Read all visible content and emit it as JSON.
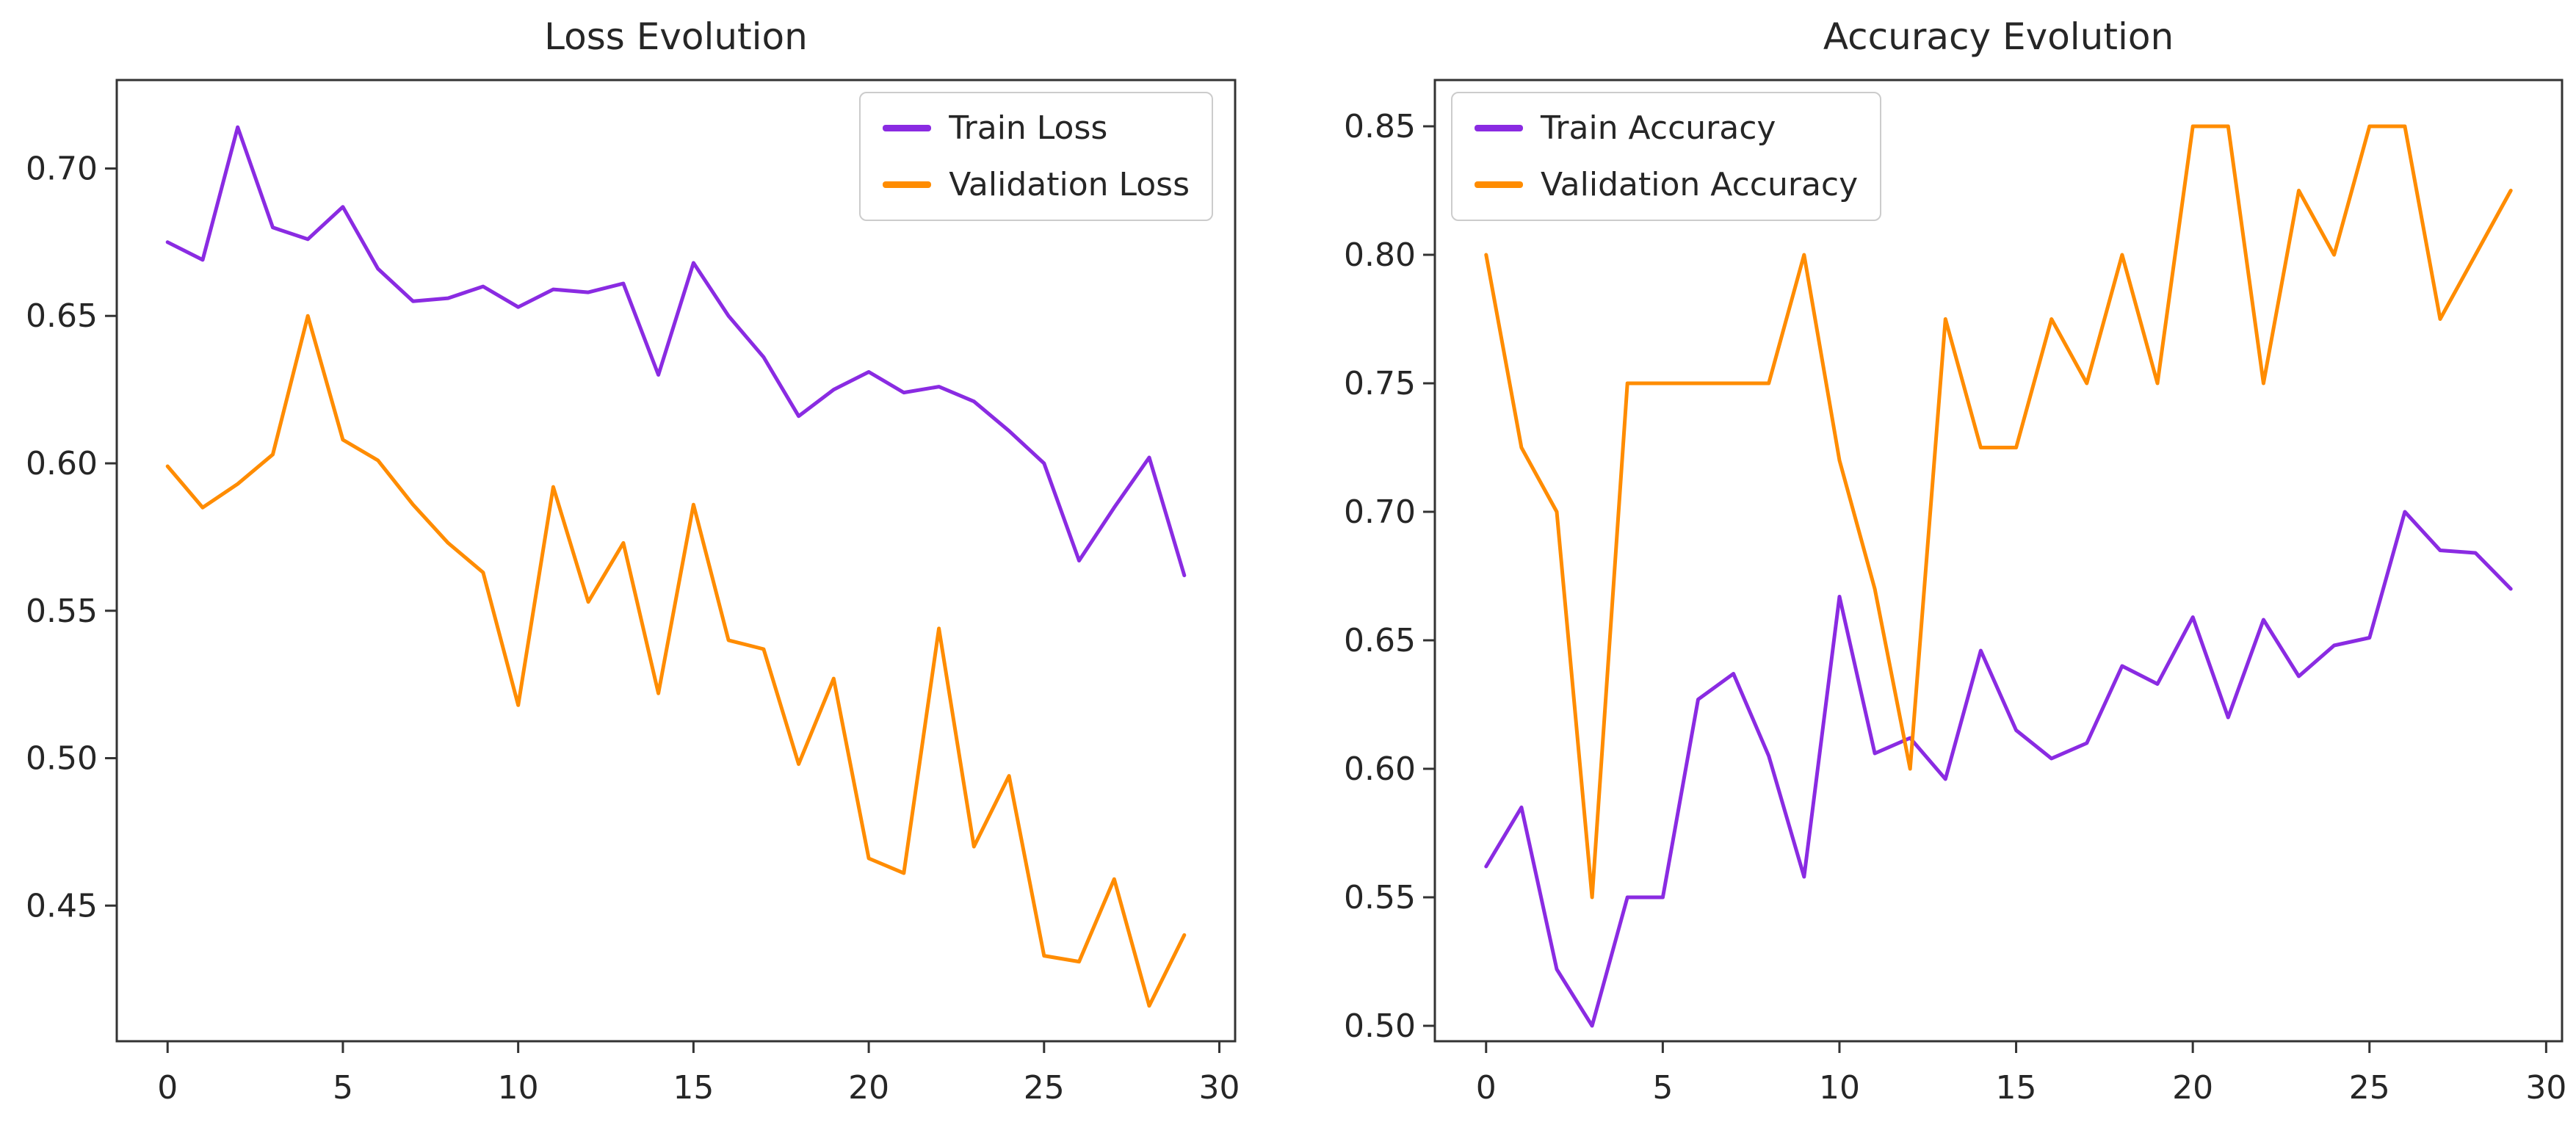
{
  "figure": {
    "background_color": "#ffffff",
    "axis_color": "#333333",
    "text_color": "#262626",
    "train_color": "#8A2BE2",
    "validation_color": "#FF8C00"
  },
  "chart_data": [
    {
      "type": "line",
      "title": "Loss Evolution",
      "xlabel": "",
      "ylabel": "",
      "x": [
        0,
        1,
        2,
        3,
        4,
        5,
        6,
        7,
        8,
        9,
        10,
        11,
        12,
        13,
        14,
        15,
        16,
        17,
        18,
        19,
        20,
        21,
        22,
        23,
        24,
        25,
        26,
        27,
        28,
        29
      ],
      "series": [
        {
          "name": "Train Loss",
          "color": "#8A2BE2",
          "values": [
            0.675,
            0.669,
            0.714,
            0.68,
            0.676,
            0.687,
            0.666,
            0.655,
            0.656,
            0.66,
            0.653,
            0.659,
            0.658,
            0.661,
            0.63,
            0.668,
            0.65,
            0.636,
            0.616,
            0.625,
            0.631,
            0.624,
            0.626,
            0.621,
            0.611,
            0.6,
            0.567,
            0.585,
            0.602,
            0.562
          ]
        },
        {
          "name": "Validation Loss",
          "color": "#FF8C00",
          "values": [
            0.599,
            0.585,
            0.593,
            0.603,
            0.65,
            0.608,
            0.601,
            0.586,
            0.573,
            0.563,
            0.518,
            0.592,
            0.553,
            0.573,
            0.522,
            0.586,
            0.54,
            0.537,
            0.498,
            0.527,
            0.466,
            0.461,
            0.544,
            0.47,
            0.494,
            0.433,
            0.431,
            0.459,
            0.416,
            0.44
          ]
        }
      ],
      "xlim": [
        -1.45,
        30.45
      ],
      "ylim": [
        0.404,
        0.73
      ],
      "xticks": [
        0,
        5,
        10,
        15,
        20,
        25,
        30
      ],
      "yticks": [
        0.45,
        0.5,
        0.55,
        0.6,
        0.65,
        0.7
      ],
      "legend_position": "upper right",
      "grid": false
    },
    {
      "type": "line",
      "title": "Accuracy Evolution",
      "xlabel": "",
      "ylabel": "",
      "x": [
        0,
        1,
        2,
        3,
        4,
        5,
        6,
        7,
        8,
        9,
        10,
        11,
        12,
        13,
        14,
        15,
        16,
        17,
        18,
        19,
        20,
        21,
        22,
        23,
        24,
        25,
        26,
        27,
        28,
        29
      ],
      "series": [
        {
          "name": "Train Accuracy",
          "color": "#8A2BE2",
          "values": [
            0.562,
            0.585,
            0.522,
            0.5,
            0.55,
            0.55,
            0.627,
            0.637,
            0.605,
            0.558,
            0.667,
            0.606,
            0.612,
            0.596,
            0.646,
            0.615,
            0.604,
            0.61,
            0.64,
            0.633,
            0.659,
            0.62,
            0.658,
            0.636,
            0.648,
            0.651,
            0.7,
            0.685,
            0.684,
            0.67
          ]
        },
        {
          "name": "Validation Accuracy",
          "color": "#FF8C00",
          "values": [
            0.8,
            0.725,
            0.7,
            0.55,
            0.75,
            0.75,
            0.75,
            0.75,
            0.75,
            0.8,
            0.72,
            0.67,
            0.6,
            0.775,
            0.725,
            0.725,
            0.775,
            0.75,
            0.8,
            0.75,
            0.85,
            0.85,
            0.75,
            0.825,
            0.8,
            0.85,
            0.85,
            0.775,
            0.8,
            0.825
          ]
        }
      ],
      "xlim": [
        -1.45,
        30.45
      ],
      "ylim": [
        0.494,
        0.868
      ],
      "xticks": [
        0,
        5,
        10,
        15,
        20,
        25,
        30
      ],
      "yticks": [
        0.5,
        0.55,
        0.6,
        0.65,
        0.7,
        0.75,
        0.8,
        0.85
      ],
      "legend_position": "upper left",
      "grid": false
    }
  ]
}
